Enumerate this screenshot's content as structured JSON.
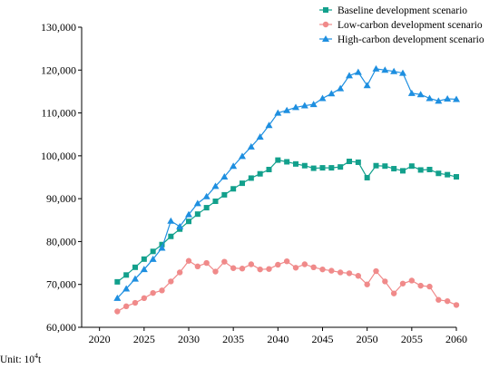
{
  "chart_data": {
    "type": "line",
    "x": [
      2022,
      2023,
      2024,
      2025,
      2026,
      2027,
      2028,
      2029,
      2030,
      2031,
      2032,
      2033,
      2034,
      2035,
      2036,
      2037,
      2038,
      2039,
      2040,
      2041,
      2042,
      2043,
      2044,
      2045,
      2046,
      2047,
      2048,
      2049,
      2050,
      2051,
      2052,
      2053,
      2054,
      2055,
      2056,
      2057,
      2058,
      2059,
      2060
    ],
    "xlim": [
      2018,
      2060
    ],
    "ylim": [
      60000,
      130000
    ],
    "xticks": [
      "2020",
      "2025",
      "2030",
      "2035",
      "2040",
      "2045",
      "2050",
      "2055",
      "2060"
    ],
    "yticks": [
      "60,000",
      "70,000",
      "80,000",
      "90,000",
      "100,000",
      "110,000",
      "120,000",
      "130,000"
    ],
    "grid": false,
    "legend_position": "top-right",
    "unit_label": "Unit: 10",
    "unit_exp": "4",
    "unit_suffix": "t",
    "series": [
      {
        "name": "Baseline development scenario",
        "color": "#12a08c",
        "marker": "square",
        "values": [
          70600,
          72200,
          74000,
          75900,
          77700,
          79300,
          81200,
          82900,
          84700,
          86400,
          87900,
          89400,
          90900,
          92300,
          93600,
          94800,
          95800,
          96800,
          99000,
          98600,
          98100,
          97700,
          97100,
          97200,
          97200,
          97400,
          98700,
          98500,
          94900,
          97700,
          97600,
          97000,
          96500,
          97600,
          96700,
          96800,
          95900,
          95600,
          95100
        ]
      },
      {
        "name": "Low-carbon development scenario",
        "color": "#f08a8a",
        "marker": "circle",
        "values": [
          63700,
          64900,
          65700,
          66800,
          68000,
          68600,
          70700,
          72800,
          75500,
          74200,
          75000,
          73000,
          75300,
          73800,
          73700,
          74700,
          73500,
          73600,
          74600,
          75400,
          73900,
          74700,
          74000,
          73500,
          73200,
          72800,
          72600,
          72000,
          70000,
          73100,
          70700,
          67900,
          70200,
          70900,
          69700,
          69500,
          66400,
          66100,
          65200
        ]
      },
      {
        "name": "High-carbon development scenario",
        "color": "#1e8fe0",
        "marker": "triangle",
        "values": [
          66800,
          69000,
          71300,
          73500,
          75900,
          78500,
          84800,
          83500,
          86300,
          88900,
          90500,
          92900,
          95100,
          97600,
          99900,
          102100,
          104400,
          107100,
          110000,
          110600,
          111300,
          111700,
          112000,
          113400,
          114500,
          115700,
          118700,
          119500,
          116400,
          120300,
          120000,
          119700,
          119300,
          114600,
          114300,
          113400,
          112800,
          113300,
          113200
        ]
      }
    ]
  }
}
